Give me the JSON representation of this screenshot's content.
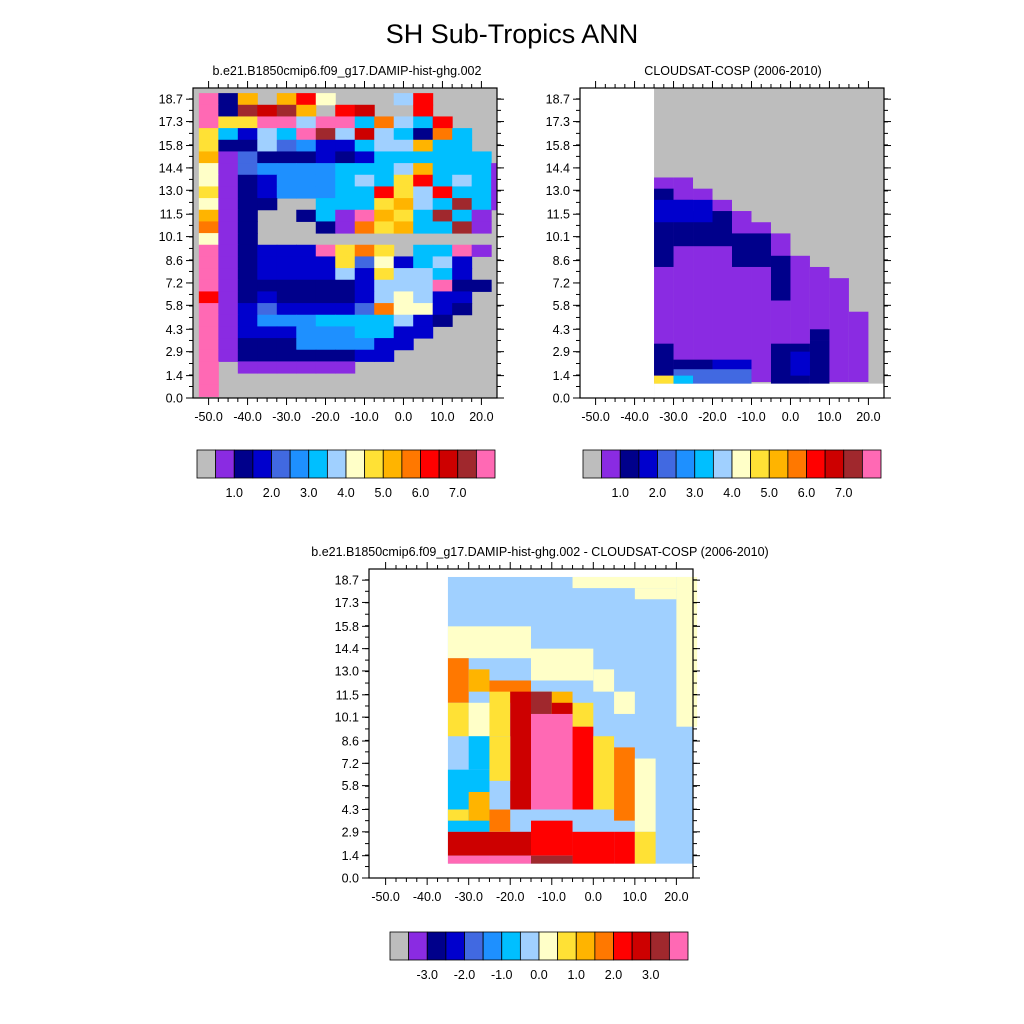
{
  "title": "SH Sub-Tropics ANN",
  "chart_data": [
    {
      "type": "heatmap",
      "title": "b.e21.B1850cmip6.f09_g17.DAMIP-hist-ghg.002",
      "x_ticks": [
        "-50.0",
        "-40.0",
        "-30.0",
        "-20.0",
        "-10.0",
        "0.0",
        "10.0",
        "20.0"
      ],
      "y_ticks": [
        "0.0",
        "1.4",
        "2.9",
        "4.3",
        "5.8",
        "7.2",
        "8.6",
        "10.1",
        "11.5",
        "13.0",
        "14.4",
        "15.8",
        "17.3",
        "18.7"
      ],
      "colorbar_labels": [
        "1.0",
        "2.0",
        "3.0",
        "4.0",
        "5.0",
        "6.0",
        "7.0"
      ],
      "xlim": [
        -54,
        24
      ],
      "ylim": [
        0,
        19.4
      ],
      "bins": {
        "x_start": -50,
        "x_step": 5,
        "nx": 15,
        "y_step": 0.73,
        "ny": 26
      },
      "palette": [
        "#bdbdbd",
        "#8a2be2",
        "#00008b",
        "#0000cd",
        "#4169e1",
        "#1e90ff",
        "#00bfff",
        "#a0d0ff",
        "#ffffc8",
        "#ffe135",
        "#ffb400",
        "#ff7800",
        "#ff0000",
        "#cd0000",
        "#a0282d",
        "#ff69b4"
      ],
      "rows": [
        "F2AIAC8NLL7C0000",
        "F2EDEAHCDLIC0000",
        "F99FF7FF6B76C000",
        "96376FE7D762B600",
        "92274533677A6600",
        "A1422232366666600",
        "81455556667A66610",
        "81235556769C67610",
        "912355566C97C6610",
        "8122006669A76E6100",
        "A1200261FA96E6101",
        "B1200021B9A66E100",
        "8120000000000000000",
        "F12333F9B9066F100",
        "F12333394836730000",
        "F12333373977630000",
        "F12222223777F22000",
        "C1232222378733000",
        "F13433334B88320000",
        "F1355566667320000",
        "F133355566330000",
        "F12225555330000",
        "F122222233000000",
        "F0111111000000000",
        "F0000000000000000",
        "F0000000000000000"
      ],
      "dataset_note": ""
    },
    {
      "type": "heatmap",
      "title": "CLOUDSAT-COSP (2006-2010)",
      "x_ticks": [
        "-50.0",
        "-40.0",
        "-30.0",
        "-20.0",
        "-10.0",
        "0.0",
        "10.0",
        "20.0"
      ],
      "y_ticks": [
        "0.0",
        "1.4",
        "2.9",
        "4.3",
        "5.8",
        "7.2",
        "8.6",
        "10.1",
        "11.5",
        "13.0",
        "14.4",
        "15.8",
        "17.3",
        "18.7"
      ],
      "colorbar_labels": [
        "1.0",
        "2.0",
        "3.0",
        "4.0",
        "5.0",
        "6.0",
        "7.0"
      ],
      "xlim": [
        -54,
        24
      ],
      "ylim": [
        0,
        19.4
      ],
      "palette": [
        "#bdbdbd",
        "#8a2be2",
        "#00008b",
        "#0000cd",
        "#4169e1",
        "#1e90ff",
        "#00bfff",
        "#a0d0ff",
        "#ffffc8",
        "#ffe135",
        "#ffb400",
        "#ff7800",
        "#ff0000",
        "#cd0000",
        "#a0282d",
        "#ff69b4"
      ]
    },
    {
      "type": "heatmap",
      "title": "b.e21.B1850cmip6.f09_g17.DAMIP-hist-ghg.002 - CLOUDSAT-COSP (2006-2010)",
      "x_ticks": [
        "-50.0",
        "-40.0",
        "-30.0",
        "-20.0",
        "-10.0",
        "0.0",
        "10.0",
        "20.0"
      ],
      "y_ticks": [
        "0.0",
        "1.4",
        "2.9",
        "4.3",
        "5.8",
        "7.2",
        "8.6",
        "10.1",
        "11.5",
        "13.0",
        "14.4",
        "15.8",
        "17.3",
        "18.7"
      ],
      "colorbar_labels": [
        "-3.0",
        "-2.0",
        "-1.0",
        "0.0",
        "1.0",
        "2.0",
        "3.0"
      ],
      "xlim": [
        -54,
        24
      ],
      "ylim": [
        0,
        19.4
      ],
      "palette": [
        "#bdbdbd",
        "#8a2be2",
        "#00008b",
        "#0000cd",
        "#4169e1",
        "#1e90ff",
        "#00bfff",
        "#a0d0ff",
        "#ffffc8",
        "#ffe135",
        "#ffb400",
        "#ff7800",
        "#ff0000",
        "#cd0000",
        "#a0282d",
        "#ff69b4"
      ]
    }
  ]
}
